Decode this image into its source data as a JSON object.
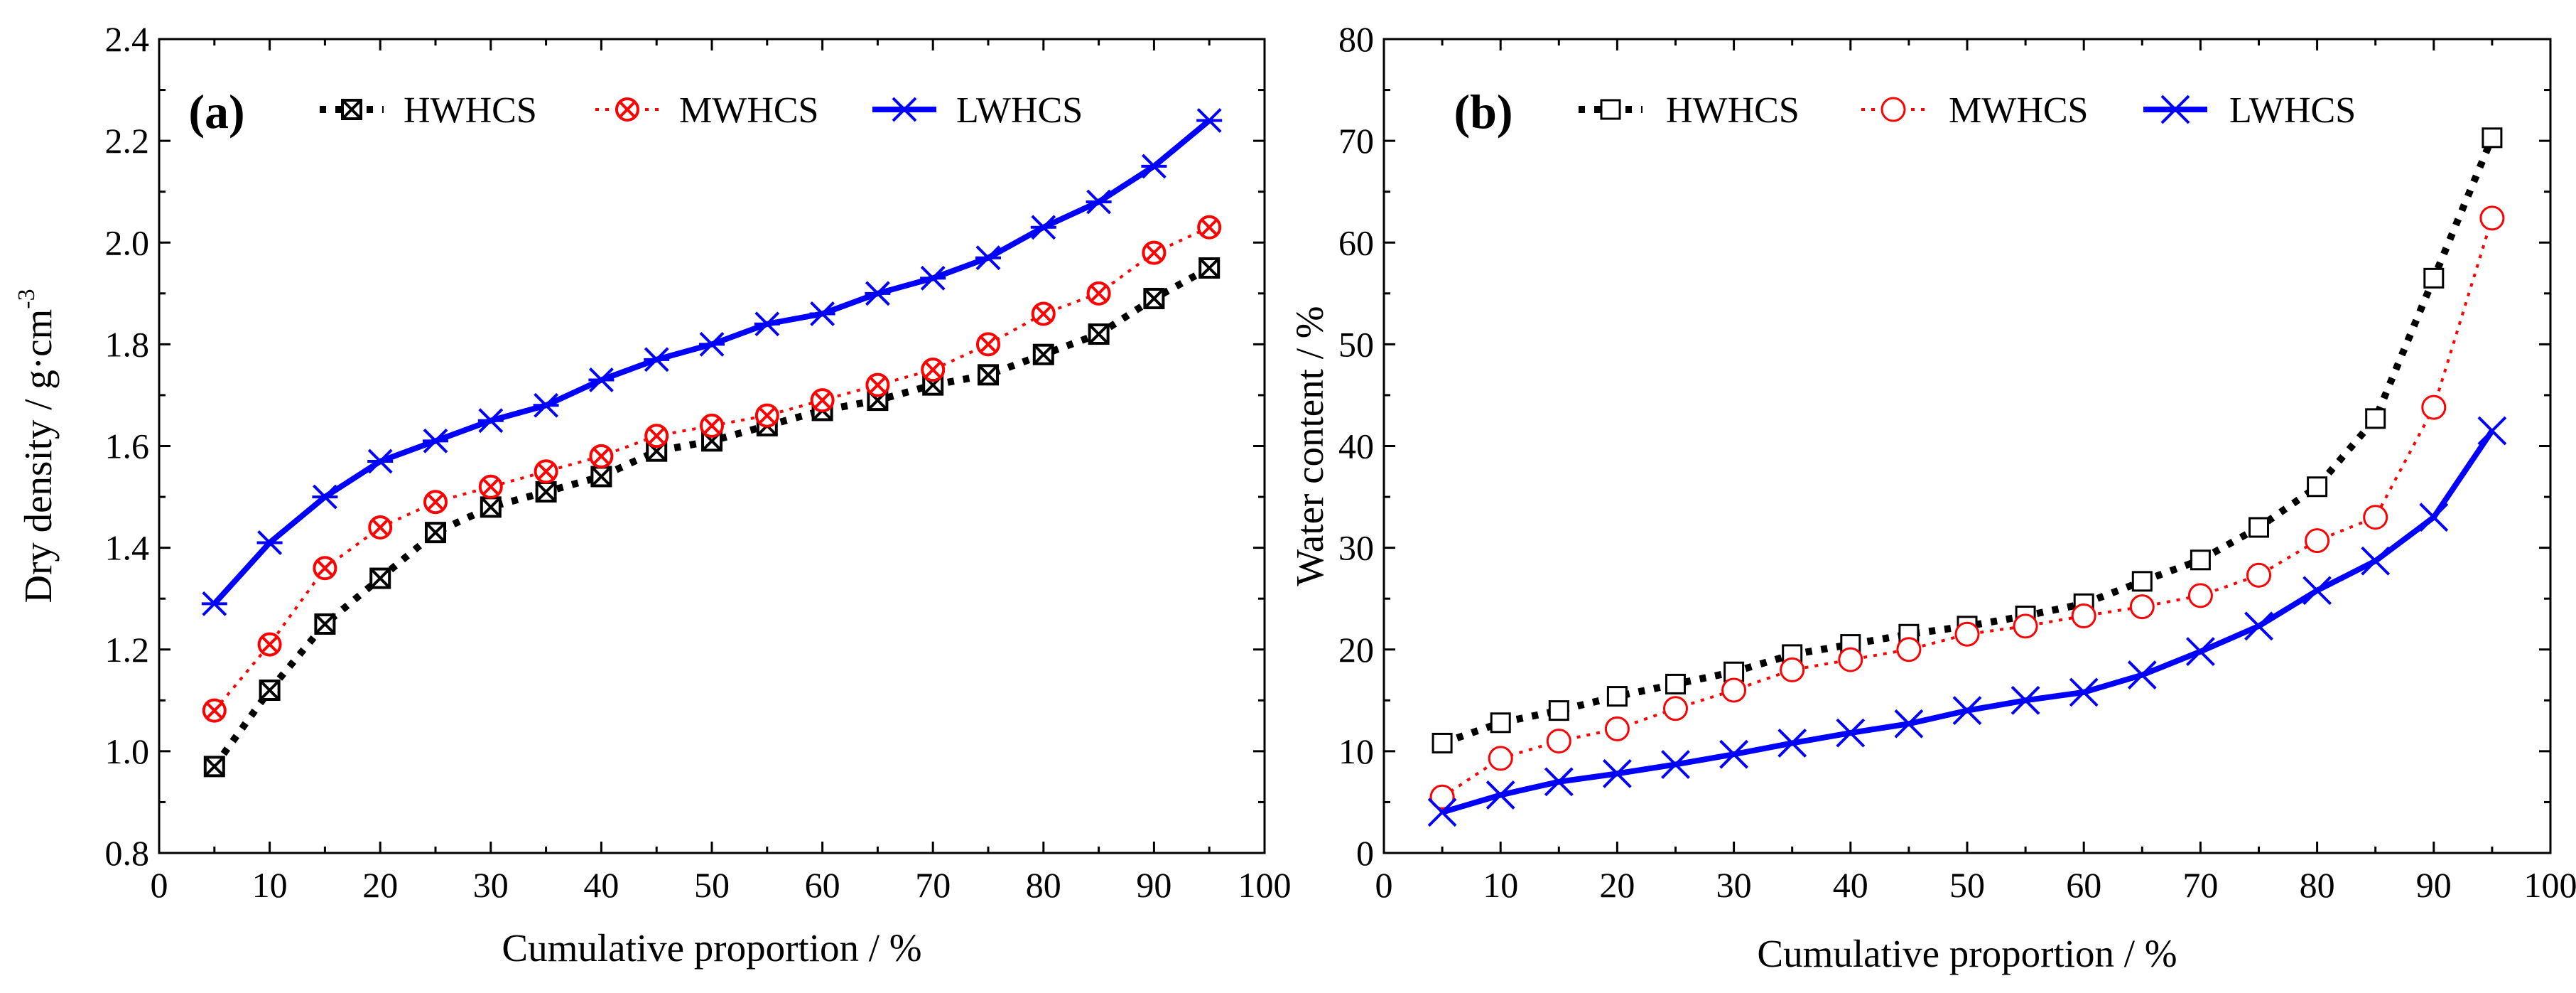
{
  "chart_data": [
    {
      "type": "line",
      "panel_label": "(a)",
      "xlabel": "Cumulative proportion / %",
      "ylabel": "Dry density / g·cm",
      "ylabel_sup": "-3",
      "xlim": [
        0,
        100
      ],
      "ylim": [
        0.8,
        2.4
      ],
      "xticks": [
        "0",
        "10",
        "20",
        "30",
        "40",
        "50",
        "60",
        "70",
        "80",
        "90",
        "100"
      ],
      "yticks": [
        "0.8",
        "1.0",
        "1.2",
        "1.4",
        "1.6",
        "1.8",
        "2.0",
        "2.2",
        "2.4"
      ],
      "x": [
        5,
        10,
        15,
        20,
        25,
        30,
        35,
        40,
        45,
        50,
        55,
        60,
        65,
        70,
        75,
        80,
        85,
        90,
        95
      ],
      "series": [
        {
          "name": "HWHCS",
          "color": "#000000",
          "line": "dotted-bold",
          "marker": "square-x",
          "values": [
            0.97,
            1.12,
            1.25,
            1.34,
            1.43,
            1.48,
            1.51,
            1.54,
            1.59,
            1.61,
            1.64,
            1.67,
            1.69,
            1.72,
            1.74,
            1.78,
            1.82,
            1.89,
            1.95
          ]
        },
        {
          "name": "MWHCS",
          "color": "#ff0000",
          "line": "dotted-thin",
          "marker": "circle-x",
          "values": [
            1.08,
            1.21,
            1.36,
            1.44,
            1.49,
            1.52,
            1.55,
            1.58,
            1.62,
            1.64,
            1.66,
            1.69,
            1.72,
            1.75,
            1.8,
            1.86,
            1.9,
            1.98,
            2.03
          ]
        },
        {
          "name": "LWHCS",
          "color": "#0000ff",
          "line": "solid",
          "marker": "star",
          "values": [
            1.29,
            1.41,
            1.5,
            1.57,
            1.61,
            1.65,
            1.68,
            1.73,
            1.77,
            1.8,
            1.84,
            1.86,
            1.9,
            1.93,
            1.97,
            2.03,
            2.08,
            2.15,
            2.24
          ]
        }
      ]
    },
    {
      "type": "line",
      "panel_label": "(b)",
      "xlabel": "Cumulative proportion / %",
      "ylabel": "Water content / %",
      "ylabel_sup": "",
      "xlim": [
        0,
        100
      ],
      "ylim": [
        0,
        80
      ],
      "xticks": [
        "0",
        "10",
        "20",
        "30",
        "40",
        "50",
        "60",
        "70",
        "80",
        "90",
        "100"
      ],
      "yticks": [
        "0",
        "10",
        "20",
        "30",
        "40",
        "50",
        "60",
        "70",
        "80"
      ],
      "x": [
        5,
        10,
        15,
        20,
        25,
        30,
        35,
        40,
        45,
        50,
        55,
        60,
        65,
        70,
        75,
        80,
        85,
        90,
        95
      ],
      "series": [
        {
          "name": "HWHCS",
          "color": "#000000",
          "line": "dotted-bold",
          "marker": "square",
          "values": [
            10.8,
            12.8,
            14.0,
            15.4,
            16.6,
            17.8,
            19.5,
            20.5,
            21.5,
            22.3,
            23.3,
            24.5,
            26.7,
            28.8,
            32.0,
            36.0,
            42.7,
            56.5,
            70.3
          ]
        },
        {
          "name": "MWHCS",
          "color": "#ff0000",
          "line": "dotted-thin",
          "marker": "circle",
          "values": [
            5.5,
            9.3,
            11.0,
            12.2,
            14.2,
            16.0,
            18.0,
            19.0,
            20.0,
            21.5,
            22.3,
            23.3,
            24.2,
            25.3,
            27.3,
            30.7,
            33.0,
            43.8,
            62.4
          ]
        },
        {
          "name": "LWHCS",
          "color": "#0000ff",
          "line": "solid",
          "marker": "x",
          "values": [
            4.0,
            5.7,
            7.0,
            7.8,
            8.7,
            9.7,
            10.8,
            11.8,
            12.7,
            14.0,
            15.0,
            15.8,
            17.5,
            19.8,
            22.3,
            25.8,
            28.7,
            33.0,
            41.5
          ]
        }
      ]
    }
  ]
}
